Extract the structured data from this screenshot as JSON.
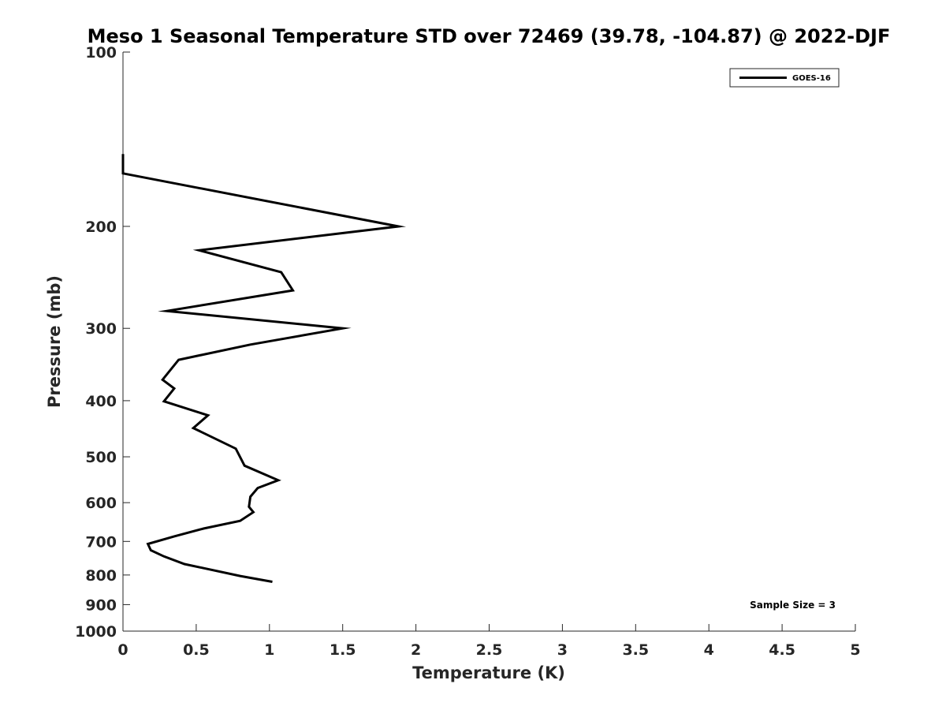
{
  "chart_data": {
    "type": "line",
    "title": "Meso 1 Seasonal Temperature STD over 72469 (39.78, -104.87) @ 2022-DJF",
    "xlabel": "Temperature (K)",
    "ylabel": "Pressure (mb)",
    "xlim": [
      0,
      5
    ],
    "ylim": [
      100,
      1000
    ],
    "y_scale": "log",
    "y_reversed": true,
    "xticks": [
      "0",
      "0.5",
      "1",
      "1.5",
      "2",
      "2.5",
      "3",
      "3.5",
      "4",
      "4.5",
      "5"
    ],
    "xtick_values": [
      0,
      0.5,
      1,
      1.5,
      2,
      2.5,
      3,
      3.5,
      4,
      4.5,
      5
    ],
    "yticks": [
      "100",
      "200",
      "300",
      "400",
      "500",
      "600",
      "700",
      "800",
      "900",
      "1000"
    ],
    "ytick_values": [
      100,
      200,
      300,
      400,
      500,
      600,
      700,
      800,
      900,
      1000
    ],
    "grid": false,
    "legend_position": "top-right",
    "series": [
      {
        "name": "GOES-16",
        "color": "#000000",
        "points": [
          [
            0.0,
            150
          ],
          [
            0.0,
            162
          ],
          [
            1.88,
            200
          ],
          [
            0.52,
            220
          ],
          [
            1.08,
            240
          ],
          [
            1.16,
            258
          ],
          [
            0.3,
            280
          ],
          [
            1.5,
            300
          ],
          [
            0.87,
            320
          ],
          [
            0.38,
            340
          ],
          [
            0.27,
            368
          ],
          [
            0.35,
            381
          ],
          [
            0.28,
            401
          ],
          [
            0.58,
            424
          ],
          [
            0.48,
            446
          ],
          [
            0.77,
            484
          ],
          [
            0.83,
            518
          ],
          [
            1.06,
            549
          ],
          [
            0.92,
            566
          ],
          [
            0.87,
            586
          ],
          [
            0.86,
            610
          ],
          [
            0.89,
            623
          ],
          [
            0.8,
            645
          ],
          [
            0.55,
            665
          ],
          [
            0.35,
            686
          ],
          [
            0.17,
            707
          ],
          [
            0.19,
            725
          ],
          [
            0.28,
            743
          ],
          [
            0.42,
            766
          ],
          [
            0.8,
            803
          ],
          [
            1.02,
            822
          ]
        ]
      }
    ],
    "annotation": "Sample Size = 3"
  }
}
